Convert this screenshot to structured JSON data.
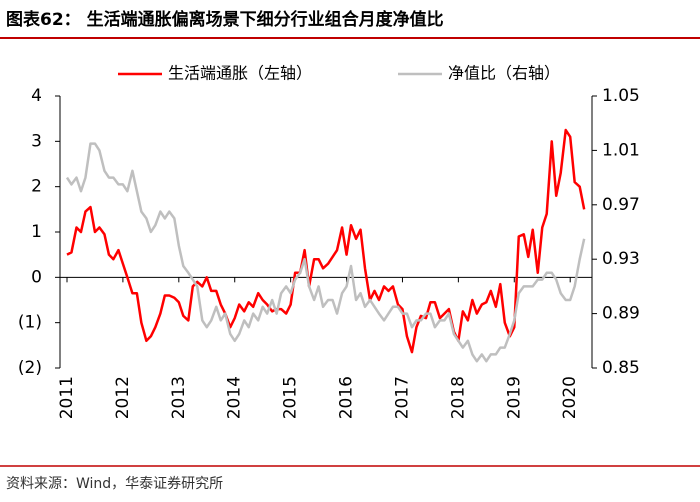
{
  "chart_data": {
    "type": "line",
    "title": "图表62：  生活端通胀偏离场景下细分行业组合月度净值比",
    "source": "资料来源：Wind，华泰证券研究所",
    "x": [
      2011.0,
      2011.08,
      2011.17,
      2011.25,
      2011.33,
      2011.42,
      2011.5,
      2011.58,
      2011.67,
      2011.75,
      2011.83,
      2011.92,
      2012.0,
      2012.08,
      2012.17,
      2012.25,
      2012.33,
      2012.42,
      2012.5,
      2012.58,
      2012.67,
      2012.75,
      2012.83,
      2012.92,
      2013.0,
      2013.08,
      2013.17,
      2013.25,
      2013.33,
      2013.42,
      2013.5,
      2013.58,
      2013.67,
      2013.75,
      2013.83,
      2013.92,
      2014.0,
      2014.08,
      2014.17,
      2014.25,
      2014.33,
      2014.42,
      2014.5,
      2014.58,
      2014.67,
      2014.75,
      2014.83,
      2014.92,
      2015.0,
      2015.08,
      2015.17,
      2015.25,
      2015.33,
      2015.42,
      2015.5,
      2015.58,
      2015.67,
      2015.75,
      2015.83,
      2015.92,
      2016.0,
      2016.08,
      2016.17,
      2016.25,
      2016.33,
      2016.42,
      2016.5,
      2016.58,
      2016.67,
      2016.75,
      2016.83,
      2016.92,
      2017.0,
      2017.08,
      2017.17,
      2017.25,
      2017.33,
      2017.42,
      2017.5,
      2017.58,
      2017.67,
      2017.75,
      2017.83,
      2017.92,
      2018.0,
      2018.08,
      2018.17,
      2018.25,
      2018.33,
      2018.42,
      2018.5,
      2018.58,
      2018.67,
      2018.75,
      2018.83,
      2018.92,
      2019.0,
      2019.08,
      2019.17,
      2019.25,
      2019.33,
      2019.42,
      2019.5,
      2019.58,
      2019.67,
      2019.75,
      2019.83,
      2019.92,
      2020.0,
      2020.08,
      2020.17,
      2020.25
    ],
    "series": [
      {
        "name": "生活端通胀（左轴）",
        "color": "#ff0000",
        "values": [
          0.5,
          0.55,
          1.1,
          1.0,
          1.45,
          1.55,
          1.0,
          1.1,
          0.95,
          0.5,
          0.4,
          0.6,
          0.3,
          0.0,
          -0.35,
          -0.35,
          -1.0,
          -1.4,
          -1.3,
          -1.1,
          -0.8,
          -0.4,
          -0.4,
          -0.45,
          -0.55,
          -0.85,
          -0.95,
          -0.2,
          -0.1,
          -0.2,
          0.0,
          -0.3,
          -0.3,
          -0.6,
          -0.8,
          -1.1,
          -0.9,
          -0.6,
          -0.75,
          -0.55,
          -0.65,
          -0.35,
          -0.5,
          -0.6,
          -0.75,
          -0.7,
          -0.7,
          -0.8,
          -0.6,
          0.1,
          0.1,
          0.6,
          -0.2,
          0.4,
          0.4,
          0.2,
          0.3,
          0.45,
          0.6,
          1.1,
          0.5,
          1.15,
          0.85,
          1.05,
          0.2,
          -0.5,
          -0.3,
          -0.5,
          -0.2,
          -0.3,
          -0.2,
          -0.6,
          -0.7,
          -1.3,
          -1.65,
          -1.1,
          -0.85,
          -0.9,
          -0.55,
          -0.55,
          -0.9,
          -0.8,
          -0.7,
          -1.2,
          -1.4,
          -0.75,
          -0.95,
          -0.5,
          -0.8,
          -0.6,
          -0.55,
          -0.3,
          -0.65,
          -0.15,
          -1.0,
          -1.3,
          -1.1,
          0.9,
          0.95,
          0.45,
          1.05,
          0.1,
          1.1,
          1.4,
          3.0,
          1.8,
          2.3,
          3.25,
          3.1,
          2.1,
          2.0,
          1.5
        ]
      },
      {
        "name": "净值比（右轴）",
        "color": "#bfbfbf",
        "axis": "y2",
        "values": [
          0.99,
          0.985,
          0.99,
          0.98,
          0.99,
          1.015,
          1.015,
          1.01,
          0.995,
          0.99,
          0.99,
          0.985,
          0.985,
          0.98,
          0.995,
          0.98,
          0.965,
          0.96,
          0.95,
          0.955,
          0.965,
          0.96,
          0.965,
          0.96,
          0.94,
          0.925,
          0.92,
          0.915,
          0.91,
          0.885,
          0.88,
          0.885,
          0.895,
          0.885,
          0.89,
          0.875,
          0.87,
          0.875,
          0.885,
          0.88,
          0.89,
          0.885,
          0.895,
          0.89,
          0.9,
          0.89,
          0.905,
          0.91,
          0.905,
          0.915,
          0.92,
          0.93,
          0.91,
          0.9,
          0.91,
          0.895,
          0.9,
          0.9,
          0.89,
          0.905,
          0.91,
          0.925,
          0.9,
          0.905,
          0.895,
          0.9,
          0.895,
          0.89,
          0.885,
          0.89,
          0.895,
          0.895,
          0.89,
          0.89,
          0.88,
          0.885,
          0.885,
          0.89,
          0.89,
          0.88,
          0.885,
          0.885,
          0.89,
          0.875,
          0.87,
          0.865,
          0.87,
          0.86,
          0.855,
          0.86,
          0.855,
          0.86,
          0.86,
          0.865,
          0.865,
          0.875,
          0.885,
          0.905,
          0.91,
          0.91,
          0.91,
          0.915,
          0.915,
          0.92,
          0.92,
          0.915,
          0.905,
          0.9,
          0.9,
          0.91,
          0.93,
          0.945
        ]
      }
    ],
    "xlim": [
      2010.875,
      2020.39
    ],
    "xticks": [
      2011,
      2012,
      2013,
      2014,
      2015,
      2016,
      2017,
      2018,
      2019,
      2020
    ],
    "ylim": [
      -2,
      4
    ],
    "yticks": [
      4,
      3,
      2,
      1,
      0,
      {
        "value": -1,
        "label": "(1)"
      },
      {
        "value": -2,
        "label": "(2)"
      }
    ],
    "y2lim": [
      0.85,
      1.05
    ],
    "y2ticks": [
      1.05,
      1.01,
      0.97,
      0.93,
      0.89,
      0.85
    ]
  }
}
